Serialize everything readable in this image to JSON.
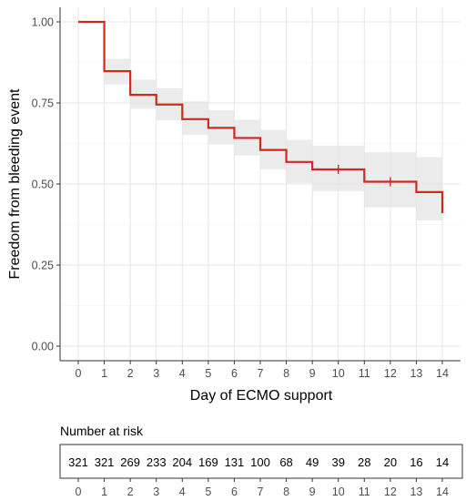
{
  "chart_data": [
    {
      "type": "line",
      "subtype": "kaplan-meier step",
      "xlabel": "Day  of ECMO support",
      "ylabel": "Freedom from bleeding event",
      "xlim": [
        0,
        14
      ],
      "ylim": [
        0,
        1
      ],
      "x_ticks": [
        "0",
        "1",
        "2",
        "3",
        "4",
        "5",
        "6",
        "7",
        "8",
        "9",
        "10",
        "11",
        "12",
        "13",
        "14"
      ],
      "y_ticks": [
        "0.00",
        "0.25",
        "0.50",
        "0.75",
        "1.00"
      ],
      "grid": true,
      "colors": {
        "line": "#cc2b1d",
        "band": "#ebebeb",
        "grid": "#e6e6e6"
      },
      "steps": [
        {
          "x": 0,
          "y": 1.0
        },
        {
          "x": 1,
          "y": 0.848
        },
        {
          "x": 2,
          "y": 0.775
        },
        {
          "x": 3,
          "y": 0.745
        },
        {
          "x": 4,
          "y": 0.7
        },
        {
          "x": 5,
          "y": 0.673
        },
        {
          "x": 6,
          "y": 0.642
        },
        {
          "x": 7,
          "y": 0.605
        },
        {
          "x": 8,
          "y": 0.568
        },
        {
          "x": 9,
          "y": 0.545
        },
        {
          "x": 11,
          "y": 0.507
        },
        {
          "x": 13,
          "y": 0.475
        },
        {
          "x": 14,
          "y": 0.41
        }
      ],
      "end_x": 14,
      "ci": [
        {
          "x0": 1,
          "x1": 2,
          "lo": 0.807,
          "hi": 0.886
        },
        {
          "x0": 2,
          "x1": 3,
          "lo": 0.732,
          "hi": 0.822
        },
        {
          "x0": 3,
          "x1": 4,
          "lo": 0.697,
          "hi": 0.795
        },
        {
          "x0": 4,
          "x1": 5,
          "lo": 0.652,
          "hi": 0.755
        },
        {
          "x0": 5,
          "x1": 6,
          "lo": 0.622,
          "hi": 0.727
        },
        {
          "x0": 6,
          "x1": 7,
          "lo": 0.588,
          "hi": 0.698
        },
        {
          "x0": 7,
          "x1": 8,
          "lo": 0.545,
          "hi": 0.667
        },
        {
          "x0": 8,
          "x1": 9,
          "lo": 0.503,
          "hi": 0.636
        },
        {
          "x0": 9,
          "x1": 11,
          "lo": 0.478,
          "hi": 0.618
        },
        {
          "x0": 11,
          "x1": 13,
          "lo": 0.428,
          "hi": 0.598
        },
        {
          "x0": 13,
          "x1": 14,
          "lo": 0.388,
          "hi": 0.583
        }
      ],
      "censor_marks": [
        {
          "x": 10,
          "y": 0.545
        },
        {
          "x": 12,
          "y": 0.507
        }
      ]
    },
    {
      "type": "table",
      "title": "Number at risk",
      "days": [
        "0",
        "1",
        "2",
        "3",
        "4",
        "5",
        "6",
        "7",
        "8",
        "9",
        "10",
        "11",
        "12",
        "13",
        "14"
      ],
      "values": [
        "321",
        "321",
        "269",
        "233",
        "204",
        "169",
        "131",
        "100",
        "68",
        "49",
        "39",
        "28",
        "20",
        "16",
        "14"
      ]
    }
  ]
}
